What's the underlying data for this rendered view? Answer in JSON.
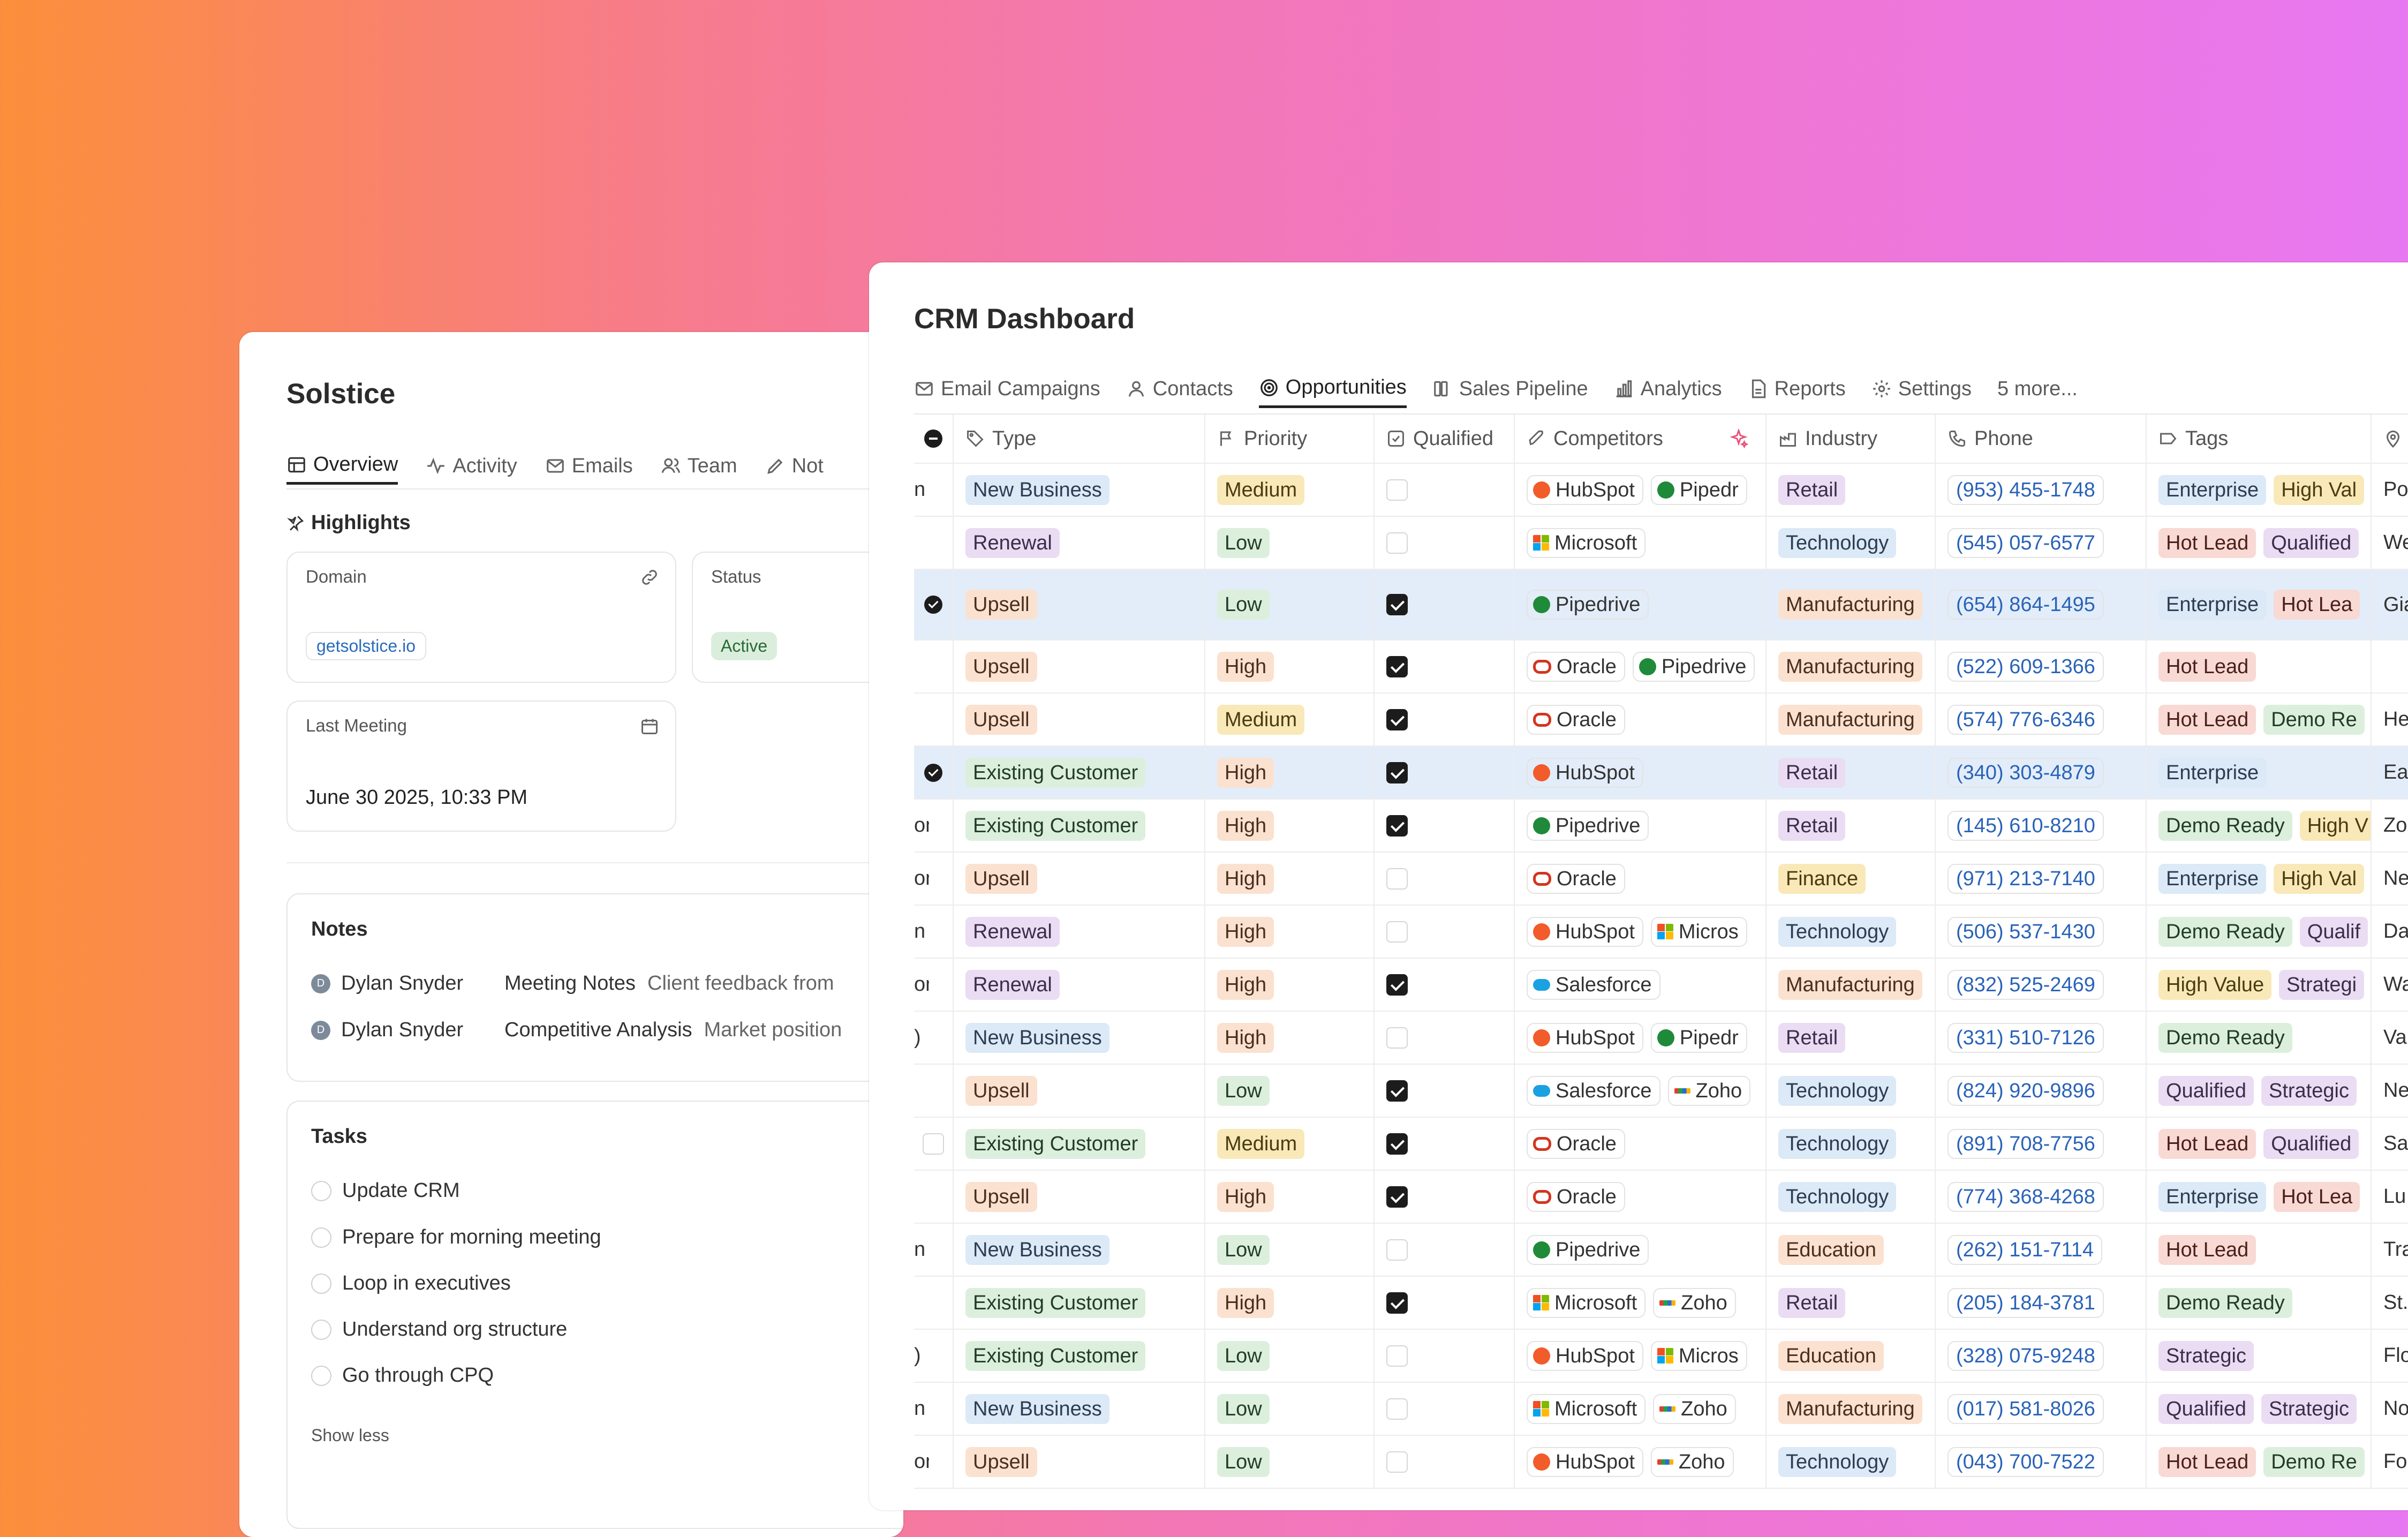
{
  "left": {
    "title": "Solstice",
    "tabs": [
      "Overview",
      "Activity",
      "Emails",
      "Team",
      "Not"
    ],
    "highlights_title": "Highlights",
    "domain": {
      "label": "Domain",
      "value": "getsolstice.io"
    },
    "status": {
      "label": "Status",
      "value": "Active"
    },
    "last_meeting": {
      "label": "Last Meeting",
      "value": "June 30 2025, 10:33 PM"
    },
    "notes": {
      "title": "Notes",
      "items": [
        {
          "avatar": "D",
          "author": "Dylan Snyder",
          "doc": "Meeting Notes",
          "desc": "Client feedback from"
        },
        {
          "avatar": "D",
          "author": "Dylan Snyder",
          "doc": "Competitive Analysis",
          "desc": "Market position"
        }
      ]
    },
    "tasks": {
      "title": "Tasks",
      "items": [
        "Update CRM",
        "Prepare for morning meeting",
        "Loop in executives",
        "Understand org structure",
        "Go through CPQ"
      ],
      "show_less": "Show less"
    }
  },
  "right": {
    "title": "CRM Dashboard",
    "tabs": [
      "Email Campaigns",
      "Contacts",
      "Opportunities",
      "Sales Pipeline",
      "Analytics",
      "Reports",
      "Settings",
      "5 more..."
    ],
    "active_tab": "Opportunities",
    "columns": [
      "Type",
      "Priority",
      "Qualified",
      "Competitors",
      "Industry",
      "Phone",
      "Tags"
    ],
    "rows": [
      {
        "lead": "n",
        "sel": "none",
        "type": "New Business",
        "priority": "Medium",
        "qualified": false,
        "competitors": [
          [
            "hub",
            "HubSpot"
          ],
          [
            "pd",
            "Pipedr"
          ]
        ],
        "industry": "Retail",
        "phone": "(953) 455-1748",
        "tags": [
          "Enterprise",
          "High Val"
        ],
        "extra": "Po"
      },
      {
        "lead": "",
        "sel": "none",
        "type": "Renewal",
        "priority": "Low",
        "qualified": false,
        "competitors": [
          [
            "ms",
            "Microsoft"
          ]
        ],
        "industry": "Technology",
        "phone": "(545) 057-6577",
        "tags": [
          "Hot Lead",
          "Qualified"
        ],
        "extra": "We"
      },
      {
        "lead": "",
        "sel": "checked",
        "tall": true,
        "type": "Upsell",
        "priority": "Low",
        "qualified": true,
        "competitors": [
          [
            "pd",
            "Pipedrive"
          ]
        ],
        "industry": "Manufacturing",
        "phone": "(654) 864-1495",
        "tags": [
          "Enterprise",
          "Hot Lea"
        ],
        "extra": "Gia"
      },
      {
        "lead": "",
        "sel": "none",
        "type": "Upsell",
        "priority": "High",
        "qualified": true,
        "competitors": [
          [
            "ora",
            "Oracle"
          ],
          [
            "pd",
            "Pipedrive"
          ]
        ],
        "industry": "Manufacturing",
        "phone": "(522) 609-1366",
        "tags": [
          "Hot Lead"
        ],
        "extra": ""
      },
      {
        "lead": "",
        "sel": "none",
        "type": "Upsell",
        "priority": "Medium",
        "qualified": true,
        "competitors": [
          [
            "ora",
            "Oracle"
          ]
        ],
        "industry": "Manufacturing",
        "phone": "(574) 776-6346",
        "tags": [
          "Hot Lead",
          "Demo Re"
        ],
        "extra": "He"
      },
      {
        "lead": "",
        "sel": "checked",
        "type": "Existing Customer",
        "priority": "High",
        "qualified": true,
        "competitors": [
          [
            "hub",
            "HubSpot"
          ]
        ],
        "industry": "Retail",
        "phone": "(340) 303-4879",
        "tags": [
          "Enterprise"
        ],
        "extra": "Ea"
      },
      {
        "lead": "on",
        "sel": "none",
        "type": "Existing Customer",
        "priority": "High",
        "qualified": true,
        "competitors": [
          [
            "pd",
            "Pipedrive"
          ]
        ],
        "industry": "Retail",
        "phone": "(145) 610-8210",
        "tags": [
          "Demo Ready",
          "High V"
        ],
        "extra": "Zo"
      },
      {
        "lead": "on",
        "sel": "none",
        "type": "Upsell",
        "priority": "High",
        "qualified": false,
        "competitors": [
          [
            "ora",
            "Oracle"
          ]
        ],
        "industry": "Finance",
        "phone": "(971) 213-7140",
        "tags": [
          "Enterprise",
          "High Val"
        ],
        "extra": "Ne"
      },
      {
        "lead": "n",
        "sel": "none",
        "type": "Renewal",
        "priority": "High",
        "qualified": false,
        "competitors": [
          [
            "hub",
            "HubSpot"
          ],
          [
            "ms",
            "Micros"
          ]
        ],
        "industry": "Technology",
        "phone": "(506) 537-1430",
        "tags": [
          "Demo Ready",
          "Qualif"
        ],
        "extra": "Da"
      },
      {
        "lead": "on",
        "sel": "none",
        "type": "Renewal",
        "priority": "High",
        "qualified": true,
        "competitors": [
          [
            "sf",
            "Salesforce"
          ]
        ],
        "industry": "Manufacturing",
        "phone": "(832) 525-2469",
        "tags": [
          "High Value",
          "Strategi"
        ],
        "extra": "Wa"
      },
      {
        "lead": ")",
        "sel": "none",
        "type": "New Business",
        "priority": "High",
        "qualified": false,
        "competitors": [
          [
            "hub",
            "HubSpot"
          ],
          [
            "pd",
            "Pipedr"
          ]
        ],
        "industry": "Retail",
        "phone": "(331) 510-7126",
        "tags": [
          "Demo Ready"
        ],
        "extra": "Va"
      },
      {
        "lead": "",
        "sel": "none",
        "type": "Upsell",
        "priority": "Low",
        "qualified": true,
        "competitors": [
          [
            "sf",
            "Salesforce"
          ],
          [
            "zoho",
            "Zoho"
          ]
        ],
        "industry": "Technology",
        "phone": "(824) 920-9896",
        "tags": [
          "Qualified",
          "Strategic"
        ],
        "extra": "Ne"
      },
      {
        "lead": "",
        "sel": "empty",
        "type": "Existing Customer",
        "priority": "Medium",
        "qualified": true,
        "competitors": [
          [
            "ora",
            "Oracle"
          ]
        ],
        "industry": "Technology",
        "phone": "(891) 708-7756",
        "tags": [
          "Hot Lead",
          "Qualified"
        ],
        "extra": "Sa"
      },
      {
        "lead": "",
        "sel": "none",
        "type": "Upsell",
        "priority": "High",
        "qualified": true,
        "competitors": [
          [
            "ora",
            "Oracle"
          ]
        ],
        "industry": "Technology",
        "phone": "(774) 368-4268",
        "tags": [
          "Enterprise",
          "Hot Lea"
        ],
        "extra": "Lu"
      },
      {
        "lead": "n",
        "sel": "none",
        "type": "New Business",
        "priority": "Low",
        "qualified": false,
        "competitors": [
          [
            "pd",
            "Pipedrive"
          ]
        ],
        "industry": "Education",
        "phone": "(262) 151-7114",
        "tags": [
          "Hot Lead"
        ],
        "extra": "Tra"
      },
      {
        "lead": "",
        "sel": "none",
        "type": "Existing Customer",
        "priority": "High",
        "qualified": true,
        "competitors": [
          [
            "ms",
            "Microsoft"
          ],
          [
            "zoho",
            "Zoho"
          ]
        ],
        "industry": "Retail",
        "phone": "(205) 184-3781",
        "tags": [
          "Demo Ready"
        ],
        "extra": "St."
      },
      {
        "lead": ")",
        "sel": "none",
        "type": "Existing Customer",
        "priority": "Low",
        "qualified": false,
        "competitors": [
          [
            "hub",
            "HubSpot"
          ],
          [
            "ms",
            "Micros"
          ]
        ],
        "industry": "Education",
        "phone": "(328) 075-9248",
        "tags": [
          "Strategic"
        ],
        "extra": "Flo"
      },
      {
        "lead": "n",
        "sel": "none",
        "type": "New Business",
        "priority": "Low",
        "qualified": false,
        "competitors": [
          [
            "ms",
            "Microsoft"
          ],
          [
            "zoho",
            "Zoho"
          ]
        ],
        "industry": "Manufacturing",
        "phone": "(017) 581-8026",
        "tags": [
          "Qualified",
          "Strategic"
        ],
        "extra": "No"
      },
      {
        "lead": "on",
        "sel": "none",
        "type": "Upsell",
        "priority": "Low",
        "qualified": false,
        "competitors": [
          [
            "hub",
            "HubSpot"
          ],
          [
            "zoho",
            "Zoho"
          ]
        ],
        "industry": "Technology",
        "phone": "(043) 700-7522",
        "tags": [
          "Hot Lead",
          "Demo Re"
        ],
        "extra": "Fo"
      }
    ],
    "type_colors": {
      "New Business": "blue",
      "Renewal": "purple",
      "Upsell": "orange",
      "Existing Customer": "green"
    },
    "priority_colors": {
      "Low": "green",
      "Medium": "yellow",
      "High": "orange"
    },
    "industry_colors": {
      "Retail": "purple",
      "Technology": "blue",
      "Manufacturing": "orange",
      "Finance": "yellow",
      "Education": "orange"
    },
    "tag_colors": {
      "Enterprise": "blue",
      "High Val": "yellow",
      "High V": "yellow",
      "High Value": "yellow",
      "Hot Lead": "red",
      "Hot Lea": "red",
      "Qualified": "purple",
      "Qualif": "purple",
      "Demo Ready": "green",
      "Demo Re": "green",
      "Strategic": "purple",
      "Strategi": "purple"
    }
  }
}
